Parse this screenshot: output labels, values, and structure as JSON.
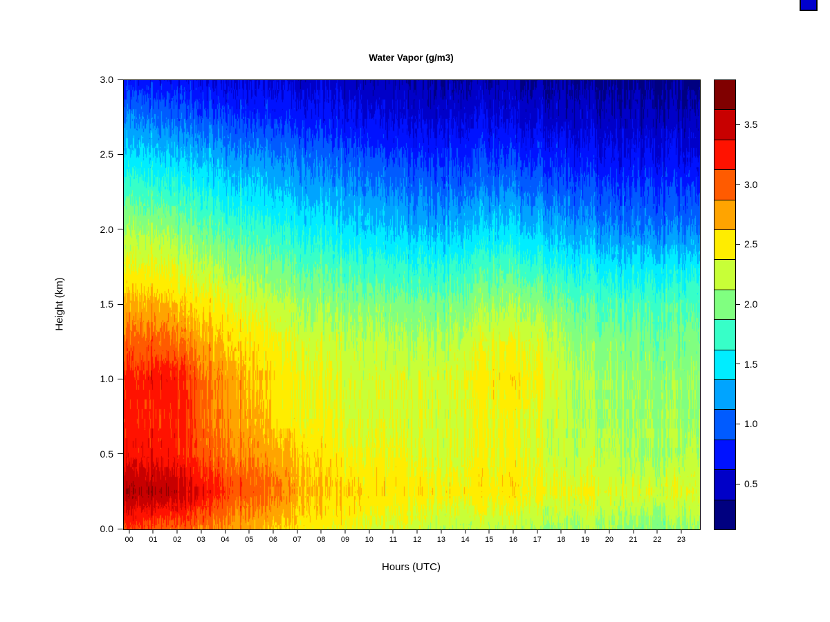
{
  "page": {
    "background": "#ffffff"
  },
  "decoration": {
    "corner_swatch_color": "#0000cd"
  },
  "chart_data": {
    "type": "heatmap",
    "title": "Water Vapor (g/m3)",
    "xlabel": "Hours (UTC)",
    "ylabel": "Height (km)",
    "value_units": "g/m3",
    "colormap": "jet",
    "colors": {
      "low": "#000080",
      "high": "#800000"
    },
    "x_range_hours": [
      0,
      24
    ],
    "y_range_km": [
      0,
      3
    ],
    "x_hours": [
      0,
      1,
      2,
      3,
      4,
      5,
      6,
      7,
      8,
      9,
      10,
      11,
      12,
      13,
      14,
      15,
      16,
      17,
      18,
      19,
      20,
      21,
      22,
      23
    ],
    "x_tick_labels": [
      "00",
      "01",
      "02",
      "03",
      "04",
      "05",
      "06",
      "07",
      "08",
      "09",
      "10",
      "11",
      "12",
      "13",
      "14",
      "15",
      "16",
      "17",
      "18",
      "19",
      "20",
      "21",
      "22",
      "23"
    ],
    "y_tick_values": [
      0.0,
      0.5,
      1.0,
      1.5,
      2.0,
      2.5,
      3.0
    ],
    "y_tick_labels": [
      "0.0",
      "0.5",
      "1.0",
      "1.5",
      "2.0",
      "2.5",
      "3.0"
    ],
    "levels": {
      "min": 0.125,
      "max": 3.875,
      "step": 0.25,
      "bins": 15
    },
    "colorbar_tick_values": [
      0.5,
      1.0,
      1.5,
      2.0,
      2.5,
      3.0,
      3.5
    ],
    "colorbar_tick_labels": [
      "0.5",
      "1.0",
      "1.5",
      "2.0",
      "2.5",
      "3.0",
      "3.5"
    ],
    "noise_texture": "vertical-striations",
    "heights_km": [
      0.0,
      0.25,
      0.5,
      0.75,
      1.0,
      1.25,
      1.5,
      1.75,
      2.0,
      2.25,
      2.5,
      2.75,
      3.0
    ],
    "values_by_height_row": [
      [
        3.1,
        3.0,
        3.0,
        2.9,
        2.8,
        2.7,
        2.6,
        2.5,
        2.4,
        2.4,
        2.3,
        2.3,
        2.2,
        2.2,
        2.2,
        2.2,
        2.2,
        2.1,
        2.1,
        2.1,
        2.1,
        2.0,
        2.0,
        2.1
      ],
      [
        3.6,
        3.6,
        3.5,
        3.3,
        3.1,
        3.0,
        2.9,
        2.7,
        2.6,
        2.6,
        2.5,
        2.5,
        2.5,
        2.5,
        2.5,
        2.5,
        2.5,
        2.4,
        2.4,
        2.4,
        2.3,
        2.3,
        2.3,
        2.4
      ],
      [
        3.3,
        3.3,
        3.2,
        3.0,
        2.9,
        2.8,
        2.7,
        2.6,
        2.5,
        2.4,
        2.4,
        2.4,
        2.3,
        2.3,
        2.4,
        2.4,
        2.4,
        2.3,
        2.2,
        2.2,
        2.2,
        2.1,
        2.1,
        2.2
      ],
      [
        3.2,
        3.2,
        3.2,
        2.9,
        2.8,
        2.7,
        2.5,
        2.4,
        2.4,
        2.3,
        2.3,
        2.3,
        2.3,
        2.3,
        2.4,
        2.4,
        2.4,
        2.3,
        2.2,
        2.1,
        2.1,
        2.1,
        2.1,
        2.1
      ],
      [
        3.2,
        3.3,
        3.2,
        2.9,
        2.8,
        2.6,
        2.5,
        2.4,
        2.35,
        2.3,
        2.3,
        2.3,
        2.3,
        2.35,
        2.45,
        2.5,
        2.5,
        2.4,
        2.2,
        2.1,
        2.1,
        2.05,
        2.05,
        2.1
      ],
      [
        3.0,
        3.0,
        2.9,
        2.7,
        2.6,
        2.5,
        2.4,
        2.3,
        2.25,
        2.2,
        2.2,
        2.15,
        2.15,
        2.2,
        2.3,
        2.35,
        2.35,
        2.3,
        2.1,
        2.0,
        2.0,
        1.95,
        1.95,
        2.0
      ],
      [
        2.7,
        2.7,
        2.6,
        2.5,
        2.4,
        2.3,
        2.2,
        2.1,
        2.05,
        2.0,
        2.0,
        1.95,
        1.95,
        2.0,
        2.05,
        2.1,
        2.1,
        2.05,
        1.9,
        1.85,
        1.8,
        1.8,
        1.8,
        1.85
      ],
      [
        2.4,
        2.4,
        2.3,
        2.2,
        2.1,
        2.0,
        1.95,
        1.85,
        1.8,
        1.75,
        1.7,
        1.65,
        1.65,
        1.7,
        1.75,
        1.8,
        1.75,
        1.7,
        1.6,
        1.55,
        1.5,
        1.5,
        1.5,
        1.55
      ],
      [
        2.1,
        2.1,
        2.0,
        1.9,
        1.8,
        1.75,
        1.65,
        1.55,
        1.5,
        1.45,
        1.4,
        1.35,
        1.3,
        1.35,
        1.4,
        1.45,
        1.4,
        1.35,
        1.25,
        1.2,
        1.15,
        1.1,
        1.1,
        1.15
      ],
      [
        1.8,
        1.75,
        1.7,
        1.6,
        1.5,
        1.45,
        1.35,
        1.3,
        1.25,
        1.2,
        1.15,
        1.1,
        1.05,
        1.1,
        1.1,
        1.15,
        1.1,
        1.05,
        1.0,
        0.95,
        0.9,
        0.9,
        0.9,
        0.9
      ],
      [
        1.45,
        1.4,
        1.35,
        1.3,
        1.2,
        1.15,
        1.1,
        1.05,
        1.0,
        0.95,
        0.9,
        0.85,
        0.8,
        0.85,
        0.85,
        0.85,
        0.8,
        0.8,
        0.75,
        0.7,
        0.65,
        0.65,
        0.65,
        0.65
      ],
      [
        1.1,
        1.05,
        1.0,
        0.95,
        0.9,
        0.85,
        0.8,
        0.75,
        0.7,
        0.65,
        0.6,
        0.6,
        0.55,
        0.6,
        0.6,
        0.6,
        0.55,
        0.55,
        0.5,
        0.5,
        0.45,
        0.45,
        0.45,
        0.45
      ],
      [
        0.75,
        0.7,
        0.7,
        0.65,
        0.6,
        0.6,
        0.55,
        0.5,
        0.5,
        0.45,
        0.4,
        0.4,
        0.35,
        0.4,
        0.4,
        0.4,
        0.35,
        0.35,
        0.35,
        0.3,
        0.3,
        0.3,
        0.3,
        0.3
      ]
    ]
  }
}
